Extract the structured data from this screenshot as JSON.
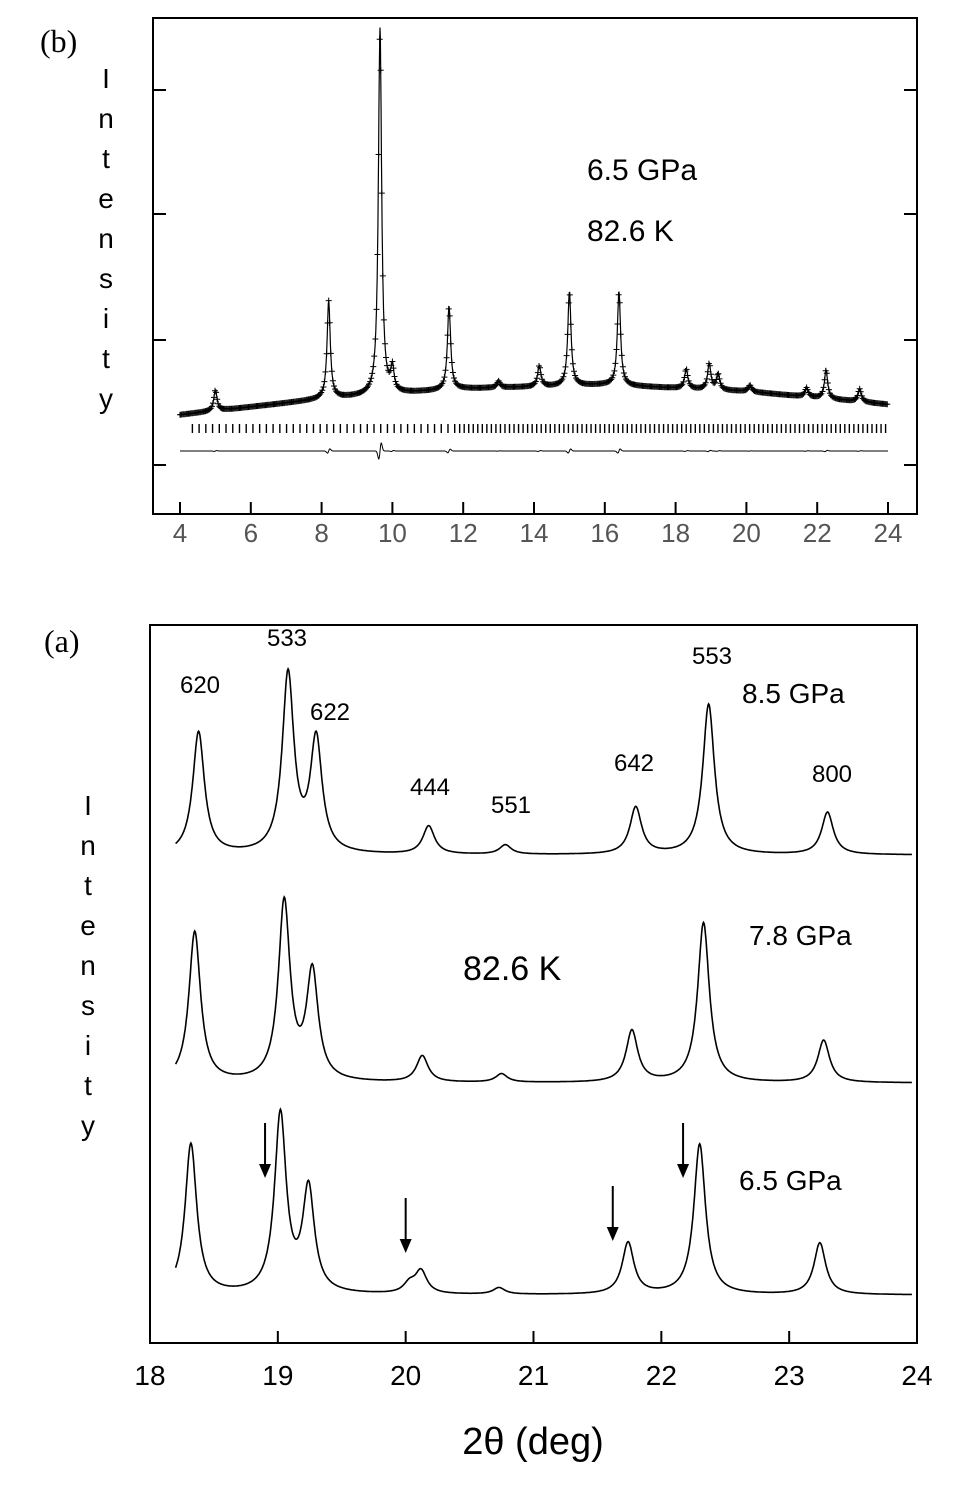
{
  "panel_b": {
    "label": "(b)",
    "ylabel": "Intensity",
    "annotations": [
      "6.5 GPa",
      "82.6 K"
    ]
  },
  "panel_a": {
    "label": "(a)",
    "ylabel": "Intensity",
    "xlabel": "2θ (deg)",
    "temperature": "82.6 K",
    "pressures": [
      "8.5 GPa",
      "7.8 GPa",
      "6.5 GPa"
    ],
    "peak_labels": [
      "620",
      "533",
      "622",
      "444",
      "551",
      "642",
      "553",
      "800"
    ]
  },
  "chart_data": [
    {
      "type": "line",
      "title": "",
      "panel": "(b)",
      "xlabel": "",
      "ylabel": "Intensity",
      "xlim": [
        4,
        24
      ],
      "xticks": [
        "4",
        "6",
        "8",
        "10",
        "12",
        "14",
        "16",
        "18",
        "20",
        "22",
        "24"
      ],
      "annotations": [
        "6.5 GPa",
        "82.6 K"
      ],
      "background": {
        "x": [
          4,
          8,
          12,
          16,
          20,
          24
        ],
        "y": [
          0.04,
          0.16,
          0.24,
          0.27,
          0.22,
          0.12
        ]
      },
      "peaks": [
        {
          "x": 5.0,
          "height": 0.16
        },
        {
          "x": 8.2,
          "height": 0.75
        },
        {
          "x": 9.65,
          "height": 2.82
        },
        {
          "x": 10.0,
          "height": 0.18
        },
        {
          "x": 11.6,
          "height": 0.64
        },
        {
          "x": 13.0,
          "height": 0.05
        },
        {
          "x": 14.15,
          "height": 0.16
        },
        {
          "x": 15.0,
          "height": 0.72
        },
        {
          "x": 16.4,
          "height": 0.72
        },
        {
          "x": 18.3,
          "height": 0.15
        },
        {
          "x": 18.95,
          "height": 0.2
        },
        {
          "x": 19.2,
          "height": 0.12
        },
        {
          "x": 20.1,
          "height": 0.05
        },
        {
          "x": 21.7,
          "height": 0.07
        },
        {
          "x": 22.25,
          "height": 0.22
        },
        {
          "x": 23.2,
          "height": 0.1
        }
      ]
    },
    {
      "type": "line",
      "title": "",
      "panel": "(a)",
      "xlabel": "2θ (deg)",
      "ylabel": "Intensity",
      "xlim": [
        18,
        24
      ],
      "xticks": [
        "18",
        "19",
        "20",
        "21",
        "22",
        "23",
        "24"
      ],
      "annotations": [
        "82.6 K"
      ],
      "peak_labels": [
        "620",
        "533",
        "622",
        "444",
        "551",
        "642",
        "553",
        "800"
      ],
      "arrows_x": [
        18.9,
        20.0,
        21.62,
        22.17
      ],
      "series": [
        {
          "name": "8.5 GPa",
          "offset": 2.0,
          "peaks": [
            {
              "x": 18.38,
              "height": 1.3
            },
            {
              "x": 19.08,
              "height": 1.9
            },
            {
              "x": 19.3,
              "height": 1.2
            },
            {
              "x": 20.18,
              "height": 0.3
            },
            {
              "x": 20.78,
              "height": 0.1
            },
            {
              "x": 21.8,
              "height": 0.5
            },
            {
              "x": 22.37,
              "height": 1.6
            },
            {
              "x": 23.3,
              "height": 0.45
            }
          ]
        },
        {
          "name": "7.8 GPa",
          "offset": 1.0,
          "peaks": [
            {
              "x": 18.35,
              "height": 1.6
            },
            {
              "x": 19.05,
              "height": 1.9
            },
            {
              "x": 19.27,
              "height": 1.15
            },
            {
              "x": 20.13,
              "height": 0.28
            },
            {
              "x": 20.75,
              "height": 0.09
            },
            {
              "x": 21.77,
              "height": 0.55
            },
            {
              "x": 22.33,
              "height": 1.7
            },
            {
              "x": 23.27,
              "height": 0.45
            }
          ]
        },
        {
          "name": "6.5 GPa",
          "offset": 0.0,
          "peaks": [
            {
              "x": 18.32,
              "height": 1.6
            },
            {
              "x": 19.02,
              "height": 1.9
            },
            {
              "x": 19.24,
              "height": 1.1
            },
            {
              "x": 20.03,
              "height": 0.1
            },
            {
              "x": 20.12,
              "height": 0.24
            },
            {
              "x": 20.73,
              "height": 0.07
            },
            {
              "x": 21.74,
              "height": 0.55
            },
            {
              "x": 22.3,
              "height": 1.6
            },
            {
              "x": 23.24,
              "height": 0.55
            }
          ]
        }
      ]
    }
  ]
}
